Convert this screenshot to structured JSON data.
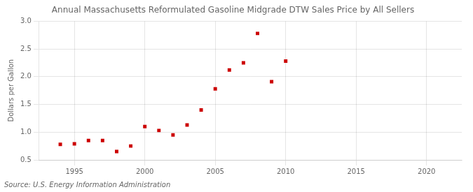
{
  "chart_data": {
    "type": "scatter",
    "title": "Annual Massachusetts Reformulated Gasoline Midgrade DTW Sales Price by All Sellers",
    "ylabel": "Dollars per Gallon",
    "annotation": "Source: U.S. Energy Information Administration",
    "x": [
      1994,
      1995,
      1996,
      1997,
      1998,
      1999,
      2000,
      2001,
      2002,
      2003,
      2004,
      2005,
      2006,
      2007,
      2008,
      2009,
      2010
    ],
    "values": [
      0.78,
      0.79,
      0.85,
      0.85,
      0.65,
      0.75,
      1.1,
      1.03,
      0.95,
      1.13,
      1.4,
      1.78,
      2.12,
      2.25,
      2.78,
      1.91,
      2.28
    ],
    "color": "#cc0000",
    "marker": "square",
    "xlim": [
      1992.5,
      2022.5
    ],
    "ylim": [
      0.5,
      3.0
    ],
    "xticks": [
      1995,
      2000,
      2005,
      2010,
      2015,
      2020
    ],
    "yticks": [
      0.5,
      {
        "value": 1.0,
        "label": "1.0"
      },
      1.5,
      {
        "value": 2.0,
        "label": "2.0"
      },
      2.5,
      {
        "value": 3.0,
        "label": "3.0"
      }
    ],
    "grid": true
  }
}
